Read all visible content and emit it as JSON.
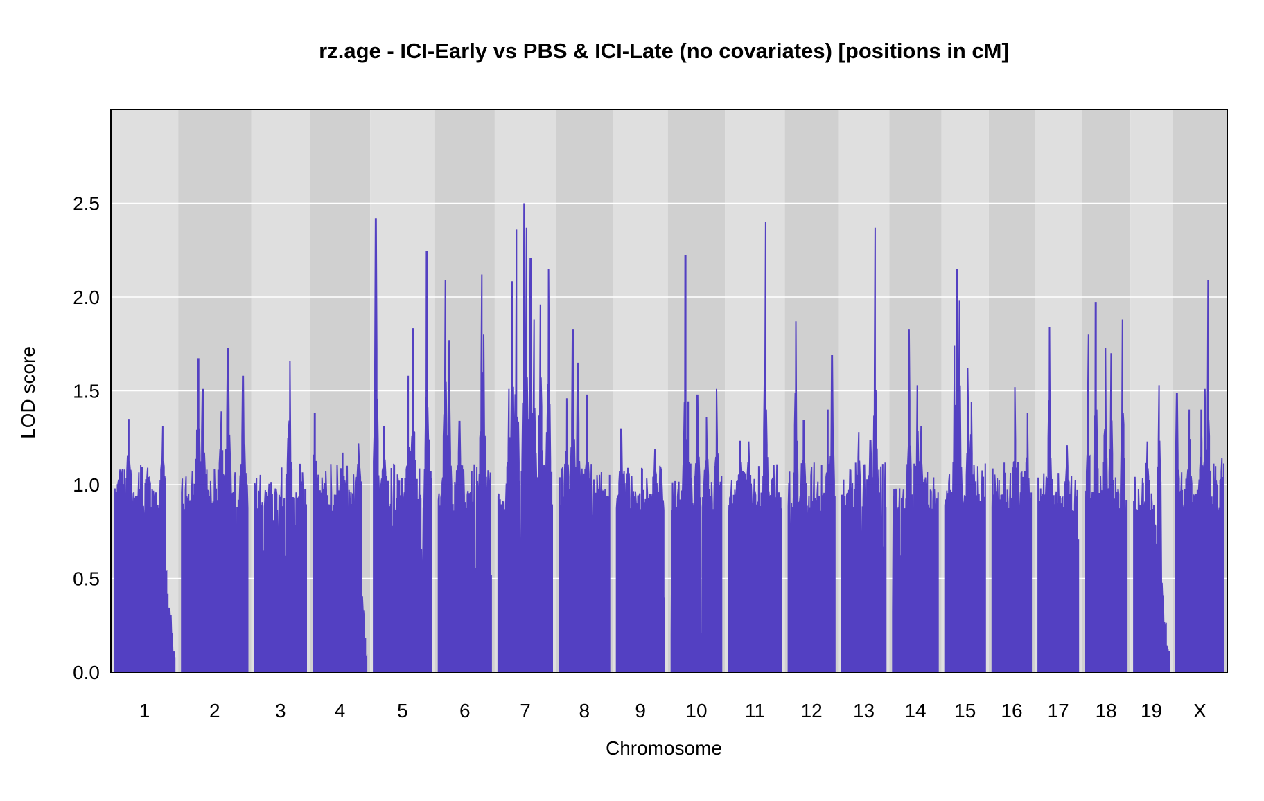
{
  "chart_data": {
    "type": "line",
    "title": "rz.age - ICI-Early vs PBS & ICI-Late (no covariates) [positions in cM]",
    "xlabel": "Chromosome",
    "ylabel": "LOD score",
    "ylim": [
      0,
      3.0
    ],
    "yticks": [
      0.0,
      0.5,
      1.0,
      1.5,
      2.0,
      2.5
    ],
    "ytick_labels": [
      "0.0",
      "0.5",
      "1.0",
      "1.5",
      "2.0",
      "2.5"
    ],
    "grid": "horizontal",
    "background_bands": "alternating gray per chromosome",
    "colors": {
      "series": "#5340C2",
      "band_light": "#DFDFDF",
      "band_dark": "#D0D0D0",
      "gridline": "#FFFFFF"
    },
    "series": [
      {
        "values_by_chromosome": "LOD profile per chromosome"
      }
    ],
    "chromosomes": [
      {
        "label": "1",
        "length_cM": 96,
        "max_lod": 1.35,
        "peak_pos": 0.24,
        "peaks": [
          [
            0.24,
            1.35
          ],
          [
            0.8,
            1.31
          ],
          [
            0.55,
            1.09
          ],
          [
            0.1,
            1.08
          ]
        ],
        "tail_drop": 0.72
      },
      {
        "label": "2",
        "length_cM": 105,
        "max_lod": 1.73,
        "peak_pos": 0.7,
        "peaks": [
          [
            0.25,
            1.67
          ],
          [
            0.32,
            1.51
          ],
          [
            0.7,
            1.73
          ],
          [
            0.93,
            1.58
          ],
          [
            0.6,
            1.39
          ]
        ],
        "tail_drop": 0.0
      },
      {
        "label": "3",
        "length_cM": 82,
        "max_lod": 1.66,
        "peak_pos": 0.68,
        "peaks": [
          [
            0.68,
            1.66
          ],
          [
            0.65,
            1.25
          ]
        ],
        "tail_drop": 0.0
      },
      {
        "label": "4",
        "length_cM": 85,
        "max_lod": 1.38,
        "peak_pos": 0.03,
        "peaks": [
          [
            0.03,
            1.38
          ],
          [
            0.85,
            1.22
          ],
          [
            0.55,
            1.17
          ]
        ],
        "tail_drop": 0.78
      },
      {
        "label": "5",
        "length_cM": 92,
        "max_lod": 2.42,
        "peak_pos": 0.04,
        "peaks": [
          [
            0.04,
            2.42
          ],
          [
            0.92,
            2.24
          ],
          [
            0.68,
            1.83
          ],
          [
            0.6,
            1.58
          ],
          [
            0.18,
            1.31
          ]
        ],
        "tail_drop": 0.0
      },
      {
        "label": "6",
        "length_cM": 84,
        "max_lod": 2.12,
        "peak_pos": 0.82,
        "peaks": [
          [
            0.82,
            2.12
          ],
          [
            0.13,
            2.09
          ],
          [
            0.2,
            1.77
          ],
          [
            0.86,
            1.8
          ],
          [
            0.4,
            1.34
          ]
        ],
        "tail_drop": 0.0
      },
      {
        "label": "7",
        "length_cM": 86,
        "max_lod": 2.5,
        "peak_pos": 0.48,
        "peaks": [
          [
            0.48,
            2.5
          ],
          [
            0.34,
            2.36
          ],
          [
            0.52,
            2.37
          ],
          [
            0.6,
            2.21
          ],
          [
            0.93,
            2.15
          ],
          [
            0.26,
            2.08
          ],
          [
            0.78,
            1.96
          ],
          [
            0.66,
            1.88
          ],
          [
            0.2,
            1.51
          ]
        ],
        "tail_drop": 0.0
      },
      {
        "label": "8",
        "length_cM": 80,
        "max_lod": 1.83,
        "peak_pos": 0.27,
        "peaks": [
          [
            0.27,
            1.83
          ],
          [
            0.37,
            1.65
          ],
          [
            0.55,
            1.48
          ],
          [
            0.15,
            1.46
          ]
        ],
        "tail_drop": 0.0
      },
      {
        "label": "9",
        "length_cM": 76,
        "max_lod": 1.3,
        "peak_pos": 0.1,
        "peaks": [
          [
            0.1,
            1.3
          ],
          [
            0.8,
            1.19
          ]
        ],
        "tail_drop": 0.0
      },
      {
        "label": "10",
        "length_cM": 80,
        "max_lod": 2.22,
        "peak_pos": 0.28,
        "peaks": [
          [
            0.28,
            2.22
          ],
          [
            0.52,
            1.48
          ],
          [
            0.9,
            1.51
          ],
          [
            0.33,
            1.44
          ],
          [
            0.7,
            1.36
          ]
        ],
        "tail_drop": 0.0
      },
      {
        "label": "11",
        "length_cM": 84,
        "max_lod": 2.4,
        "peak_pos": 0.7,
        "peaks": [
          [
            0.7,
            2.4
          ],
          [
            0.22,
            1.23
          ],
          [
            0.38,
            1.23
          ]
        ],
        "tail_drop": 0.0
      },
      {
        "label": "12",
        "length_cM": 74,
        "max_lod": 1.87,
        "peak_pos": 0.16,
        "peaks": [
          [
            0.16,
            1.87
          ],
          [
            0.94,
            1.69
          ],
          [
            0.85,
            1.4
          ],
          [
            0.33,
            1.34
          ]
        ],
        "tail_drop": 0.0
      },
      {
        "label": "13",
        "length_cM": 70,
        "max_lod": 2.37,
        "peak_pos": 0.76,
        "peaks": [
          [
            0.76,
            2.37
          ],
          [
            0.65,
            1.24
          ],
          [
            0.38,
            1.28
          ]
        ],
        "tail_drop": 0.0
      },
      {
        "label": "14",
        "length_cM": 72,
        "max_lod": 1.83,
        "peak_pos": 0.36,
        "peaks": [
          [
            0.36,
            1.83
          ],
          [
            0.54,
            1.53
          ],
          [
            0.62,
            1.31
          ]
        ],
        "tail_drop": 0.0
      },
      {
        "label": "15",
        "length_cM": 64,
        "max_lod": 2.15,
        "peak_pos": 0.3,
        "peaks": [
          [
            0.3,
            2.15
          ],
          [
            0.36,
            1.98
          ],
          [
            0.57,
            1.62
          ],
          [
            0.65,
            1.44
          ],
          [
            0.24,
            1.74
          ]
        ],
        "tail_drop": 0.0
      },
      {
        "label": "16",
        "length_cM": 62,
        "max_lod": 1.52,
        "peak_pos": 0.58,
        "peaks": [
          [
            0.58,
            1.52
          ],
          [
            0.9,
            1.38
          ]
        ],
        "tail_drop": 0.0
      },
      {
        "label": "17",
        "length_cM": 64,
        "max_lod": 1.84,
        "peak_pos": 0.28,
        "peaks": [
          [
            0.28,
            1.84
          ],
          [
            0.72,
            1.21
          ]
        ],
        "tail_drop": 0.0
      },
      {
        "label": "18",
        "length_cM": 66,
        "max_lod": 1.97,
        "peak_pos": 0.25,
        "peaks": [
          [
            0.25,
            1.97
          ],
          [
            0.07,
            1.8
          ],
          [
            0.9,
            1.88
          ],
          [
            0.48,
            1.73
          ],
          [
            0.62,
            1.7
          ]
        ],
        "tail_drop": 0.0
      },
      {
        "label": "19",
        "length_cM": 56,
        "max_lod": 1.53,
        "peak_pos": 0.72,
        "peaks": [
          [
            0.72,
            1.53
          ],
          [
            0.38,
            1.23
          ]
        ],
        "tail_drop": 0.5
      },
      {
        "label": "X",
        "length_cM": 76,
        "max_lod": 2.09,
        "peak_pos": 0.67,
        "peaks": [
          [
            0.67,
            2.09
          ],
          [
            0.61,
            1.51
          ],
          [
            0.02,
            1.49
          ],
          [
            0.53,
            1.4
          ],
          [
            0.28,
            1.4
          ],
          [
            0.96,
            1.14
          ]
        ],
        "tail_drop": 0.0
      }
    ]
  }
}
